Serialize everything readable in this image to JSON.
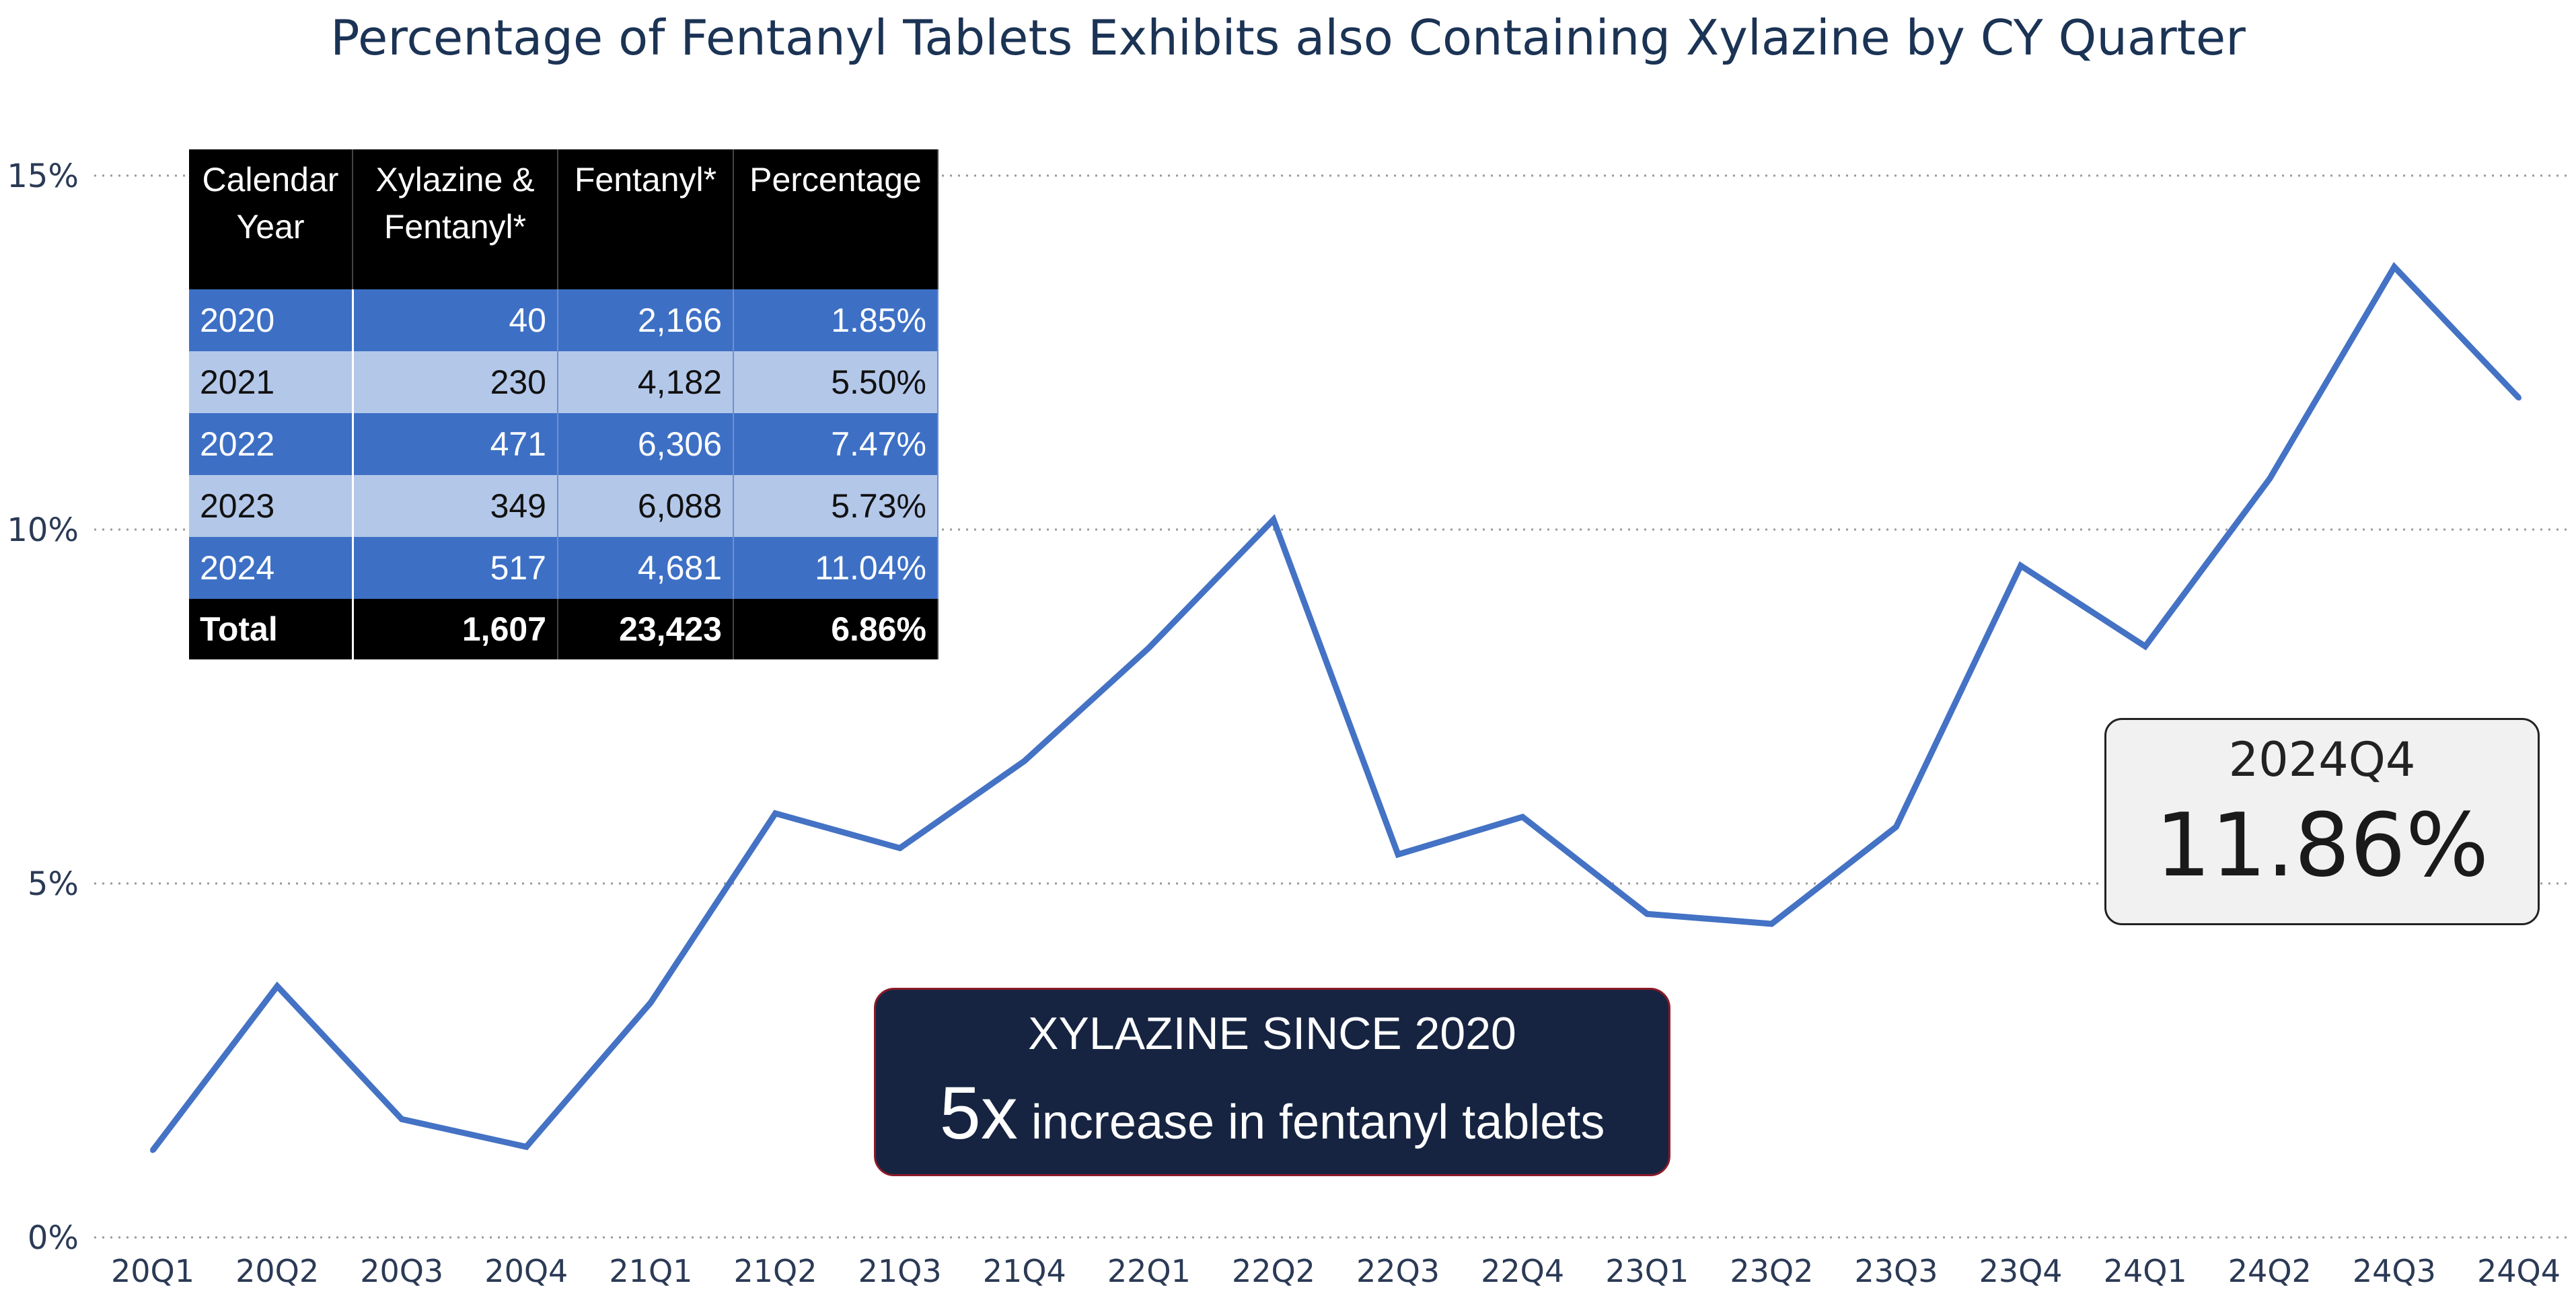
{
  "chart_data": {
    "type": "line",
    "title": "Percentage of Fentanyl Tablets Exhibits also Containing Xylazine by CY Quarter",
    "xlabel": "",
    "ylabel": "",
    "ylim": [
      0,
      15
    ],
    "yticks": [
      0,
      5,
      10,
      15
    ],
    "ytick_labels": [
      "0%",
      "5%",
      "10%",
      "15%"
    ],
    "grid": "horizontal dotted",
    "x": [
      "20Q1",
      "20Q2",
      "20Q3",
      "20Q4",
      "21Q1",
      "21Q2",
      "21Q3",
      "21Q4",
      "22Q1",
      "22Q2",
      "22Q3",
      "22Q4",
      "23Q1",
      "23Q2",
      "23Q3",
      "23Q4",
      "24Q1",
      "24Q2",
      "24Q3",
      "24Q4"
    ],
    "series": [
      {
        "name": "Percentage",
        "color": "#4472c4",
        "values": [
          1.23,
          3.55,
          1.67,
          1.28,
          3.32,
          5.99,
          5.5,
          6.73,
          8.33,
          10.14,
          5.41,
          5.94,
          4.57,
          4.43,
          5.8,
          9.49,
          8.35,
          10.72,
          13.71,
          11.86
        ]
      }
    ]
  },
  "table": {
    "headers": [
      "Calendar Year",
      "Xylazine & Fentanyl*",
      "Fentanyl*",
      "Percentage"
    ],
    "rows": [
      [
        "2020",
        "40",
        "2,166",
        "1.85%"
      ],
      [
        "2021",
        "230",
        "4,182",
        "5.50%"
      ],
      [
        "2022",
        "471",
        "6,306",
        "7.47%"
      ],
      [
        "2023",
        "349",
        "6,088",
        "5.73%"
      ],
      [
        "2024",
        "517",
        "4,681",
        "11.04%"
      ]
    ],
    "total": [
      "Total",
      "1,607",
      "23,423",
      "6.86%"
    ]
  },
  "kpi": {
    "label": "2024Q4",
    "value": "11.86%"
  },
  "callout": {
    "heading": "XYLAZINE SINCE 2020",
    "big": "5x",
    "text": "increase in fentanyl tablets"
  }
}
